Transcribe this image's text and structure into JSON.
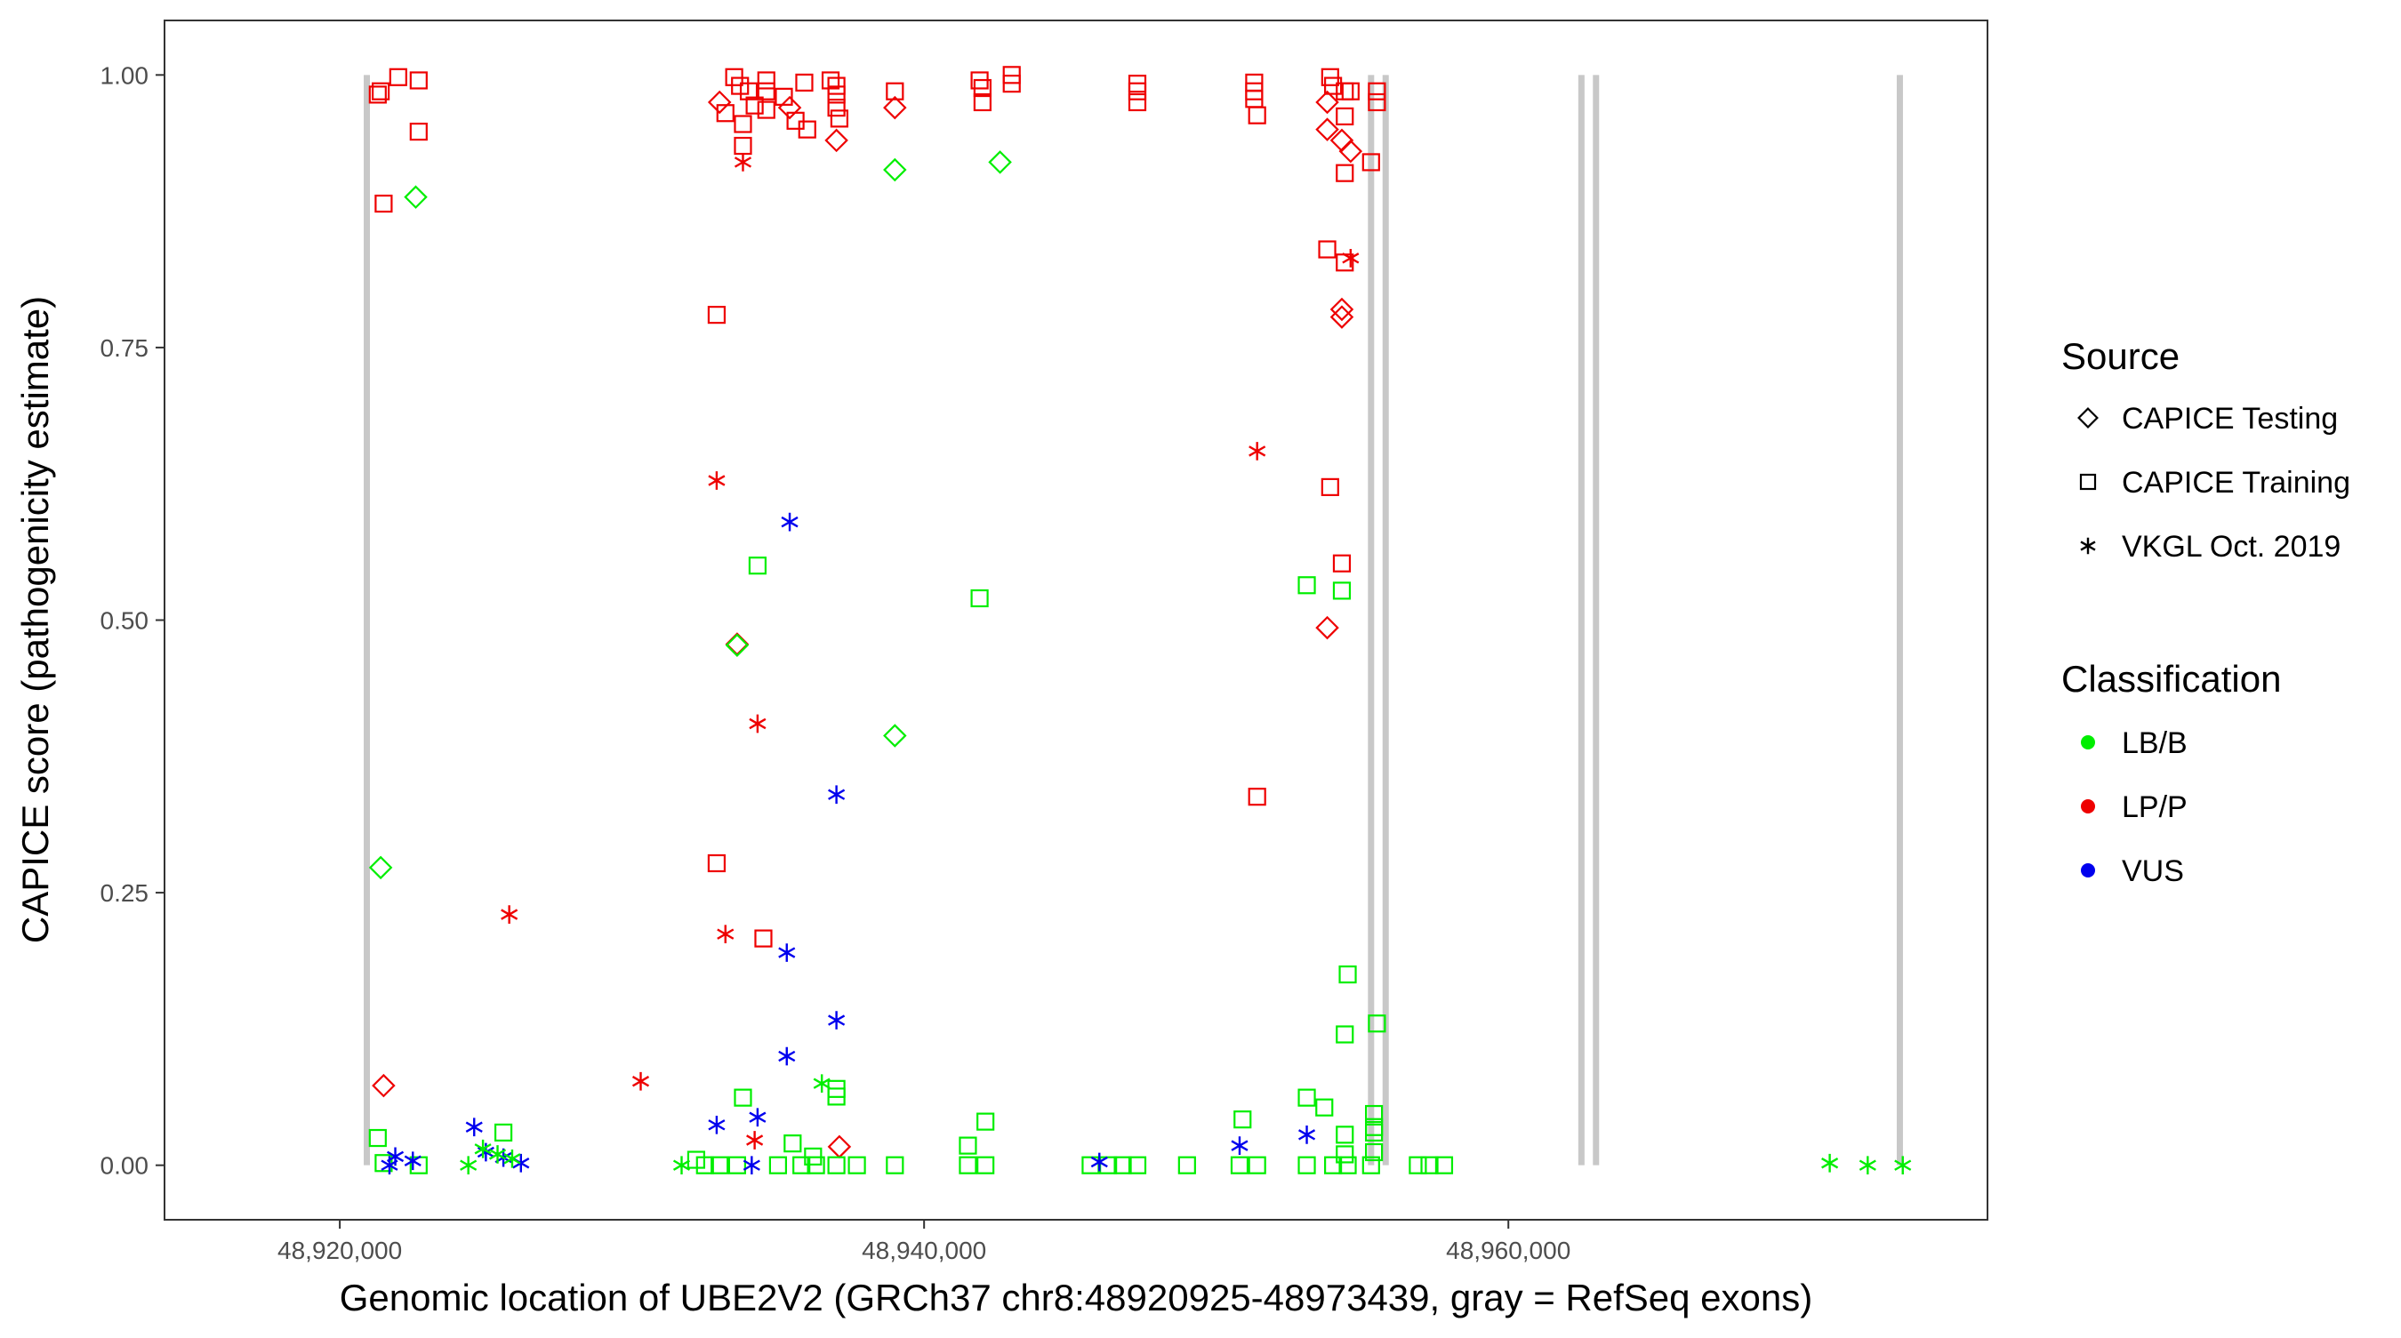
{
  "chart_data": {
    "type": "scatter",
    "title": "",
    "xlabel": "Genomic location of UBE2V2 (GRCh37 chr8:48920925-48973439, gray = RefSeq exons)",
    "ylabel": "CAPICE score (pathogenicity estimate)",
    "xlim": [
      48914000,
      48976400
    ],
    "ylim": [
      -0.05,
      1.05
    ],
    "x_ticks": [
      48920000,
      48940000,
      48960000
    ],
    "x_tick_labels": [
      "48,920,000",
      "48,940,000",
      "48,960,000"
    ],
    "y_ticks": [
      0,
      0.25,
      0.5,
      0.75,
      1
    ],
    "y_tick_labels": [
      "0.00",
      "0.25",
      "0.50",
      "0.75",
      "1.00"
    ],
    "grid": false,
    "exons": [
      48920925,
      48955300,
      48955800,
      48962500,
      48963000,
      48973400
    ],
    "legend": {
      "position": "right",
      "source_title": "Source",
      "source_items": [
        {
          "label": "CAPICE Testing",
          "shape": "diamond"
        },
        {
          "label": "CAPICE Training",
          "shape": "square"
        },
        {
          "label": "VKGL Oct. 2019",
          "shape": "asterisk"
        }
      ],
      "class_title": "Classification",
      "class_items": [
        {
          "label": "LB/B",
          "color": "#00ee00"
        },
        {
          "label": "LP/P",
          "color": "#ee0000"
        },
        {
          "label": "VUS",
          "color": "#0000ee"
        }
      ]
    },
    "series": [
      {
        "name": "CAPICE Testing",
        "shape": "diamond",
        "points": [
          [
            48933000,
            0.975,
            "LP/P"
          ],
          [
            48935400,
            0.97,
            "LP/P"
          ],
          [
            48937000,
            0.94,
            "LP/P"
          ],
          [
            48939000,
            0.97,
            "LP/P"
          ],
          [
            48953800,
            0.975,
            "LP/P"
          ],
          [
            48953800,
            0.95,
            "LP/P"
          ],
          [
            48954300,
            0.94,
            "LP/P"
          ],
          [
            48954600,
            0.93,
            "LP/P"
          ],
          [
            48954300,
            0.785,
            "LP/P"
          ],
          [
            48954300,
            0.778,
            "LP/P"
          ],
          [
            48953800,
            0.493,
            "LP/P"
          ],
          [
            48933600,
            0.478,
            "LP/P"
          ],
          [
            48921500,
            0.073,
            "LP/P"
          ],
          [
            48937100,
            0.017,
            "LP/P"
          ],
          [
            48922600,
            0.888,
            "LB/B"
          ],
          [
            48939000,
            0.913,
            "LB/B"
          ],
          [
            48942600,
            0.92,
            "LB/B"
          ],
          [
            48939000,
            0.394,
            "LB/B"
          ],
          [
            48921400,
            0.273,
            "LB/B"
          ],
          [
            48933600,
            0.477,
            "LB/B"
          ]
        ]
      },
      {
        "name": "CAPICE Training",
        "shape": "square",
        "points": [
          [
            48921400,
            0.985,
            "LP/P"
          ],
          [
            48921300,
            0.982,
            "LP/P"
          ],
          [
            48922000,
            0.998,
            "LP/P"
          ],
          [
            48922700,
            0.995,
            "LP/P"
          ],
          [
            48922700,
            0.948,
            "LP/P"
          ],
          [
            48921500,
            0.882,
            "LP/P"
          ],
          [
            48933200,
            0.965,
            "LP/P"
          ],
          [
            48933500,
            0.998,
            "LP/P"
          ],
          [
            48933700,
            0.99,
            "LP/P"
          ],
          [
            48934000,
            0.985,
            "LP/P"
          ],
          [
            48934200,
            0.972,
            "LP/P"
          ],
          [
            48933800,
            0.955,
            "LP/P"
          ],
          [
            48933800,
            0.935,
            "LP/P"
          ],
          [
            48934600,
            0.995,
            "LP/P"
          ],
          [
            48934600,
            0.985,
            "LP/P"
          ],
          [
            48934600,
            0.968,
            "LP/P"
          ],
          [
            48935200,
            0.98,
            "LP/P"
          ],
          [
            48935600,
            0.958,
            "LP/P"
          ],
          [
            48935900,
            0.993,
            "LP/P"
          ],
          [
            48936000,
            0.95,
            "LP/P"
          ],
          [
            48936800,
            0.995,
            "LP/P"
          ],
          [
            48937000,
            0.99,
            "LP/P"
          ],
          [
            48937000,
            0.982,
            "LP/P"
          ],
          [
            48937000,
            0.97,
            "LP/P"
          ],
          [
            48937100,
            0.96,
            "LP/P"
          ],
          [
            48939000,
            0.985,
            "LP/P"
          ],
          [
            48941900,
            0.995,
            "LP/P"
          ],
          [
            48942000,
            0.988,
            "LP/P"
          ],
          [
            48942000,
            0.975,
            "LP/P"
          ],
          [
            48943000,
            1.0,
            "LP/P"
          ],
          [
            48943000,
            0.992,
            "LP/P"
          ],
          [
            48947300,
            0.992,
            "LP/P"
          ],
          [
            48947300,
            0.985,
            "LP/P"
          ],
          [
            48947300,
            0.975,
            "LP/P"
          ],
          [
            48951300,
            0.993,
            "LP/P"
          ],
          [
            48951300,
            0.985,
            "LP/P"
          ],
          [
            48951300,
            0.978,
            "LP/P"
          ],
          [
            48951400,
            0.963,
            "LP/P"
          ],
          [
            48953900,
            0.998,
            "LP/P"
          ],
          [
            48954000,
            0.99,
            "LP/P"
          ],
          [
            48954400,
            0.985,
            "LP/P"
          ],
          [
            48954600,
            0.985,
            "LP/P"
          ],
          [
            48954400,
            0.962,
            "LP/P"
          ],
          [
            48954400,
            0.91,
            "LP/P"
          ],
          [
            48955500,
            0.985,
            "LP/P"
          ],
          [
            48955500,
            0.975,
            "LP/P"
          ],
          [
            48955300,
            0.92,
            "LP/P"
          ],
          [
            48953800,
            0.84,
            "LP/P"
          ],
          [
            48954400,
            0.828,
            "LP/P"
          ],
          [
            48932900,
            0.78,
            "LP/P"
          ],
          [
            48953900,
            0.622,
            "LP/P"
          ],
          [
            48954300,
            0.552,
            "LP/P"
          ],
          [
            48951400,
            0.338,
            "LP/P"
          ],
          [
            48932900,
            0.277,
            "LP/P"
          ],
          [
            48934500,
            0.208,
            "LP/P"
          ],
          [
            48934300,
            0.55,
            "LB/B"
          ],
          [
            48941900,
            0.52,
            "LB/B"
          ],
          [
            48953100,
            0.532,
            "LB/B"
          ],
          [
            48954300,
            0.527,
            "LB/B"
          ],
          [
            48954500,
            0.175,
            "LB/B"
          ],
          [
            48955500,
            0.13,
            "LB/B"
          ],
          [
            48954400,
            0.12,
            "LB/B"
          ],
          [
            48933800,
            0.062,
            "LB/B"
          ],
          [
            48937000,
            0.07,
            "LB/B"
          ],
          [
            48937000,
            0.063,
            "LB/B"
          ],
          [
            48953100,
            0.062,
            "LB/B"
          ],
          [
            48953700,
            0.053,
            "LB/B"
          ],
          [
            48955400,
            0.047,
            "LB/B"
          ],
          [
            48950900,
            0.042,
            "LB/B"
          ],
          [
            48942100,
            0.04,
            "LB/B"
          ],
          [
            48955400,
            0.035,
            "LB/B"
          ],
          [
            48955400,
            0.03,
            "LB/B"
          ],
          [
            48954400,
            0.028,
            "LB/B"
          ],
          [
            48925600,
            0.03,
            "LB/B"
          ],
          [
            48921300,
            0.025,
            "LB/B"
          ],
          [
            48935500,
            0.02,
            "LB/B"
          ],
          [
            48941500,
            0.018,
            "LB/B"
          ],
          [
            48955400,
            0.012,
            "LB/B"
          ],
          [
            48954400,
            0.01,
            "LB/B"
          ],
          [
            48936200,
            0.008,
            "LB/B"
          ],
          [
            48932200,
            0.005,
            "LB/B"
          ],
          [
            48921500,
            0.002,
            "LB/B"
          ],
          [
            48922700,
            0.0,
            "LB/B"
          ],
          [
            48932500,
            0.0,
            "LB/B"
          ],
          [
            48933000,
            0.0,
            "LB/B"
          ],
          [
            48933600,
            0.0,
            "LB/B"
          ],
          [
            48935000,
            0.0,
            "LB/B"
          ],
          [
            48935800,
            0.0,
            "LB/B"
          ],
          [
            48936300,
            0.0,
            "LB/B"
          ],
          [
            48937000,
            0.0,
            "LB/B"
          ],
          [
            48937700,
            0.0,
            "LB/B"
          ],
          [
            48939000,
            0.0,
            "LB/B"
          ],
          [
            48941500,
            0.0,
            "LB/B"
          ],
          [
            48942100,
            0.0,
            "LB/B"
          ],
          [
            48945700,
            0.0,
            "LB/B"
          ],
          [
            48946300,
            0.0,
            "LB/B"
          ],
          [
            48946800,
            0.0,
            "LB/B"
          ],
          [
            48947300,
            0.0,
            "LB/B"
          ],
          [
            48949000,
            0.0,
            "LB/B"
          ],
          [
            48950800,
            0.0,
            "LB/B"
          ],
          [
            48951400,
            0.0,
            "LB/B"
          ],
          [
            48953100,
            0.0,
            "LB/B"
          ],
          [
            48954000,
            0.0,
            "LB/B"
          ],
          [
            48954500,
            0.0,
            "LB/B"
          ],
          [
            48955300,
            0.0,
            "LB/B"
          ],
          [
            48956900,
            0.0,
            "LB/B"
          ],
          [
            48957300,
            0.0,
            "LB/B"
          ],
          [
            48957800,
            0.0,
            "LB/B"
          ]
        ]
      },
      {
        "name": "VKGL Oct. 2019",
        "shape": "asterisk",
        "points": [
          [
            48933800,
            0.92,
            "LP/P"
          ],
          [
            48954600,
            0.832,
            "LP/P"
          ],
          [
            48951400,
            0.655,
            "LP/P"
          ],
          [
            48932900,
            0.628,
            "LP/P"
          ],
          [
            48934300,
            0.405,
            "LP/P"
          ],
          [
            48925800,
            0.23,
            "LP/P"
          ],
          [
            48933200,
            0.212,
            "LP/P"
          ],
          [
            48930300,
            0.077,
            "LP/P"
          ],
          [
            48934200,
            0.023,
            "LP/P"
          ],
          [
            48935400,
            0.59,
            "VUS"
          ],
          [
            48937000,
            0.34,
            "VUS"
          ],
          [
            48935300,
            0.195,
            "VUS"
          ],
          [
            48937000,
            0.133,
            "VUS"
          ],
          [
            48935300,
            0.1,
            "VUS"
          ],
          [
            48934300,
            0.044,
            "VUS"
          ],
          [
            48932900,
            0.037,
            "VUS"
          ],
          [
            48924600,
            0.035,
            "VUS"
          ],
          [
            48953100,
            0.028,
            "VUS"
          ],
          [
            48950800,
            0.018,
            "VUS"
          ],
          [
            48925000,
            0.012,
            "VUS"
          ],
          [
            48921900,
            0.008,
            "VUS"
          ],
          [
            48925600,
            0.007,
            "VUS"
          ],
          [
            48922500,
            0.004,
            "VUS"
          ],
          [
            48946000,
            0.003,
            "VUS"
          ],
          [
            48926200,
            0.002,
            "VUS"
          ],
          [
            48934100,
            0.0,
            "VUS"
          ],
          [
            48921700,
            0.0,
            "VUS"
          ],
          [
            48936500,
            0.075,
            "LB/B"
          ],
          [
            48924900,
            0.015,
            "LB/B"
          ],
          [
            48925400,
            0.01,
            "LB/B"
          ],
          [
            48925900,
            0.006,
            "LB/B"
          ],
          [
            48924400,
            0.0,
            "LB/B"
          ],
          [
            48931700,
            0.0,
            "LB/B"
          ],
          [
            48971000,
            0.002,
            "LB/B"
          ],
          [
            48972300,
            0.0,
            "LB/B"
          ],
          [
            48973500,
            0.0,
            "LB/B"
          ]
        ]
      }
    ]
  }
}
